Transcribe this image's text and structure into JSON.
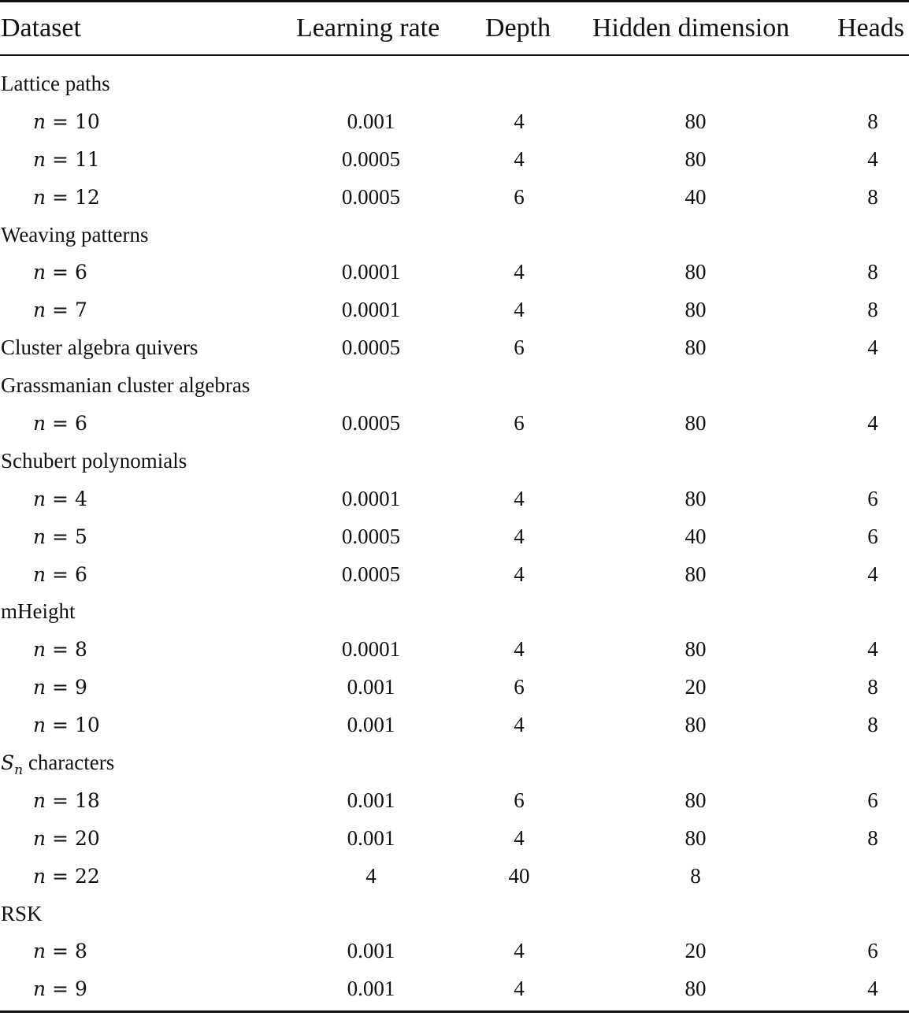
{
  "header": {
    "dataset": "Dataset",
    "learning_rate": "Learning rate",
    "depth": "Depth",
    "hidden_dimension": "Hidden dimension",
    "heads": "Heads"
  },
  "rows": [
    {
      "type": "group",
      "label": "Lattice paths"
    },
    {
      "type": "sub",
      "var": "n",
      "eq": " = ",
      "n": "10",
      "lr": "0.001",
      "depth": "4",
      "hidden": "80",
      "heads": "8"
    },
    {
      "type": "sub",
      "var": "n",
      "eq": " = ",
      "n": "11",
      "lr": "0.0005",
      "depth": "4",
      "hidden": "80",
      "heads": "4"
    },
    {
      "type": "sub",
      "var": "n",
      "eq": " = ",
      "n": "12",
      "lr": "0.0005",
      "depth": "6",
      "hidden": "40",
      "heads": "8"
    },
    {
      "type": "group",
      "label": "Weaving patterns"
    },
    {
      "type": "sub",
      "var": "n",
      "eq": " = ",
      "n": "6",
      "lr": "0.0001",
      "depth": "4",
      "hidden": "80",
      "heads": "8"
    },
    {
      "type": "sub",
      "var": "n",
      "eq": " = ",
      "n": "7",
      "lr": "0.0001",
      "depth": "4",
      "hidden": "80",
      "heads": "8"
    },
    {
      "type": "grouprow",
      "label": "Cluster algebra quivers",
      "lr": "0.0005",
      "depth": "6",
      "hidden": "80",
      "heads": "4"
    },
    {
      "type": "group",
      "label": "Grassmanian cluster algebras"
    },
    {
      "type": "sub",
      "var": "n",
      "eq": " = ",
      "n": "6",
      "lr": "0.0005",
      "depth": "6",
      "hidden": "80",
      "heads": "4"
    },
    {
      "type": "group",
      "label": "Schubert polynomials"
    },
    {
      "type": "sub",
      "var": "n",
      "eq": " = ",
      "n": "4",
      "lr": "0.0001",
      "depth": "4",
      "hidden": "80",
      "heads": "6"
    },
    {
      "type": "sub",
      "var": "n",
      "eq": " = ",
      "n": "5",
      "lr": "0.0005",
      "depth": "4",
      "hidden": "40",
      "heads": "6"
    },
    {
      "type": "sub",
      "var": "n",
      "eq": " = ",
      "n": "6",
      "lr": "0.0005",
      "depth": "4",
      "hidden": "80",
      "heads": "4"
    },
    {
      "type": "group",
      "label": "mHeight"
    },
    {
      "type": "sub",
      "var": "n",
      "eq": " = ",
      "n": "8",
      "lr": "0.0001",
      "depth": "4",
      "hidden": "80",
      "heads": "4"
    },
    {
      "type": "sub",
      "var": "n",
      "eq": " = ",
      "n": "9",
      "lr": "0.001",
      "depth": "6",
      "hidden": "20",
      "heads": "8"
    },
    {
      "type": "sub",
      "var": "n",
      "eq": " = ",
      "n": "10",
      "lr": "0.001",
      "depth": "4",
      "hidden": "80",
      "heads": "8"
    },
    {
      "type": "groupsym",
      "sym": "S",
      "symsub": "n",
      "label": " characters"
    },
    {
      "type": "sub",
      "var": "n",
      "eq": " = ",
      "n": "18",
      "lr": "0.001",
      "depth": "6",
      "hidden": "80",
      "heads": "6"
    },
    {
      "type": "sub",
      "var": "n",
      "eq": " = ",
      "n": "20",
      "lr": "0.001",
      "depth": "4",
      "hidden": "80",
      "heads": "8"
    },
    {
      "type": "sub",
      "var": "n",
      "eq": " = ",
      "n": "22",
      "lr": "4",
      "depth": "40",
      "hidden": "8",
      "heads": ""
    },
    {
      "type": "group",
      "label": "RSK"
    },
    {
      "type": "sub",
      "var": "n",
      "eq": " = ",
      "n": "8",
      "lr": "0.001",
      "depth": "4",
      "hidden": "20",
      "heads": "6"
    },
    {
      "type": "sub",
      "var": "n",
      "eq": " = ",
      "n": "9",
      "lr": "0.001",
      "depth": "4",
      "hidden": "80",
      "heads": "4"
    }
  ]
}
